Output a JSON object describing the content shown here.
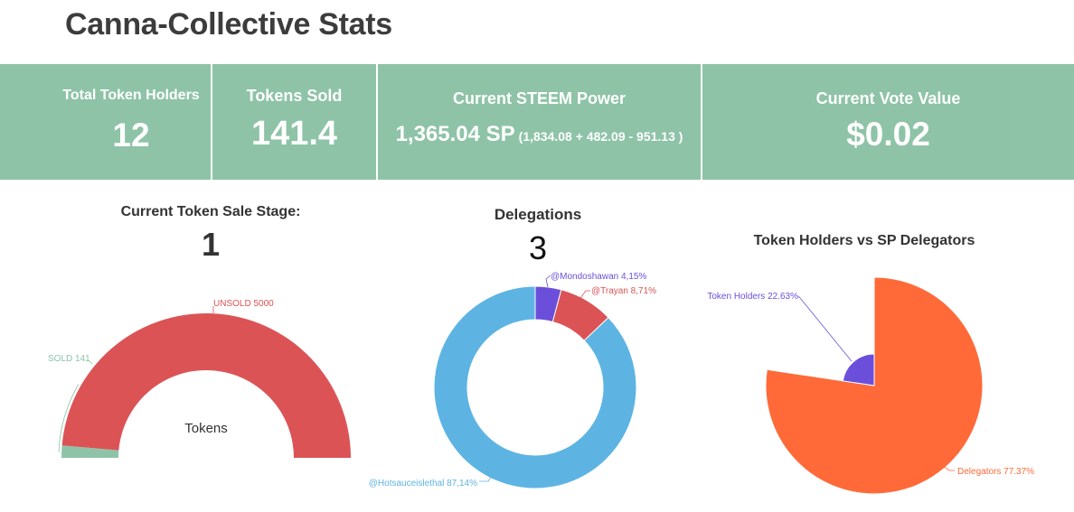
{
  "page": {
    "title": "Canna-Collective Stats"
  },
  "stats": {
    "token_holders": {
      "label": "Total Token Holders",
      "value": "12"
    },
    "tokens_sold": {
      "label": "Tokens Sold",
      "value": "141.4"
    },
    "steem_power": {
      "label": "Current STEEM Power",
      "value": "1,365.04 SP",
      "breakdown": "(1,834.08 + 482.09 - 951.13 )"
    },
    "vote_value": {
      "label": "Current Vote Value",
      "value": "$0.02"
    }
  },
  "sale_stage": {
    "title": "Current Token Sale Stage:",
    "value": "1"
  },
  "delegations": {
    "title": "Delegations",
    "value": "3"
  },
  "holders_vs_delegators": {
    "title": "Token Holders vs SP Delegators"
  },
  "colors": {
    "stats_bg": "#8ec3a7",
    "unsold": "#dc5356",
    "sold": "#8ec3a7",
    "hotsauce": "#5db4e3",
    "mondoshawan": "#6b4fdb",
    "trayan": "#dc5356",
    "delegators": "#ff6a38",
    "holders": "#6b4fdb"
  },
  "chart_data": [
    {
      "type": "pie",
      "variant": "half-donut gauge",
      "center_label": "Tokens",
      "slices": [
        {
          "label": "SOLD",
          "value": 141,
          "display": "SOLD 141",
          "color": "#8ec3a7"
        },
        {
          "label": "UNSOLD",
          "value": 5000,
          "display": "UNSOLD 5000",
          "color": "#dc5356"
        }
      ]
    },
    {
      "type": "pie",
      "variant": "donut",
      "slices": [
        {
          "label": "@Mondoshawan",
          "value": 4.15,
          "display": "@Mondoshawan 4,15%",
          "color": "#6b4fdb"
        },
        {
          "label": "@Trayan",
          "value": 8.71,
          "display": "@Trayan 8,71%",
          "color": "#dc5356"
        },
        {
          "label": "@Hotsauceislethal",
          "value": 87.14,
          "display": "@Hotsauceislethal 87,14%",
          "color": "#5db4e3"
        }
      ]
    },
    {
      "type": "pie",
      "variant": "variable-radius pie",
      "slices": [
        {
          "label": "Delegators",
          "value": 77.37,
          "display": "Delegators 77.37%",
          "color": "#ff6a38"
        },
        {
          "label": "Token Holders",
          "value": 22.63,
          "display": "Token Holders 22.63%",
          "color": "#6b4fdb"
        }
      ]
    }
  ]
}
